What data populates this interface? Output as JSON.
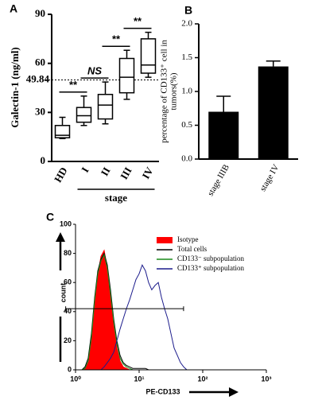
{
  "chart_data": [
    {
      "type": "box",
      "panel": "A",
      "ylabel": "Galectin-1 (ng/ml)",
      "categories": [
        "HD",
        "I",
        "II",
        "III",
        "IV"
      ],
      "boxes": [
        {
          "min": 14,
          "q1": 14.5,
          "median": 16,
          "q3": 22,
          "max": 27
        },
        {
          "min": 22,
          "q1": 24,
          "median": 28,
          "q3": 33,
          "max": 40
        },
        {
          "min": 23,
          "q1": 26,
          "median": 34.5,
          "q3": 41,
          "max": 48.6
        },
        {
          "min": 38,
          "q1": 42,
          "median": 51.5,
          "q3": 63,
          "max": 68
        },
        {
          "min": 51.5,
          "q1": 54,
          "median": 59,
          "q3": 75,
          "max": 79
        }
      ],
      "reference_line": 49.84,
      "significance": [
        "**",
        "NS",
        "**",
        "**"
      ],
      "group_label": "stage",
      "ylim": [
        0,
        90
      ],
      "yticks": [
        0,
        30,
        60,
        90
      ]
    },
    {
      "type": "bar",
      "panel": "B",
      "ylabel": [
        "percentage of CD133⁺ cell in",
        "tumors(%)"
      ],
      "categories": [
        "stage IIIB",
        "stage IV"
      ],
      "values": [
        0.7,
        1.37
      ],
      "errors": [
        0.23,
        0.08
      ],
      "color": "#000000",
      "ylim": [
        0,
        2
      ],
      "yticks": [
        {
          "value": 0,
          "label": "0.0"
        },
        0.5,
        {
          "value": 1,
          "label": "1.0"
        },
        1.5,
        {
          "value": 2,
          "label": "2.0"
        }
      ]
    },
    {
      "type": "histogram-line",
      "panel": "C",
      "xlabel": "PE-CD133",
      "ylabel": "count",
      "log_x": true,
      "legend": "top-right",
      "x": [
        1,
        1.12,
        1.26,
        1.41,
        1.58,
        1.78,
        2,
        2.24,
        2.51,
        2.82,
        3.16,
        3.55,
        3.98,
        4.47,
        5.01,
        5.62,
        6.31,
        7.08,
        7.94,
        8.91,
        10,
        11.2,
        12.6,
        14.1,
        15.8,
        17.8,
        20,
        22.4,
        25.1,
        28.2,
        31.6,
        35.5,
        39.8,
        44.7,
        50.1,
        56.2,
        63.1
      ],
      "series": [
        {
          "name": "Isotype",
          "color": "#ff0000",
          "fill": true,
          "values": [
            0,
            0,
            0,
            1,
            5,
            20,
            45,
            65,
            78,
            82,
            70,
            50,
            30,
            15,
            6,
            2,
            1,
            0,
            0,
            0,
            0,
            0,
            0,
            0,
            0,
            0,
            0,
            0,
            0,
            0,
            0,
            0,
            0,
            0,
            0,
            0,
            0
          ]
        },
        {
          "name": "Total cells",
          "color": "#000000",
          "fill": false,
          "values": [
            0,
            0,
            0,
            2,
            8,
            25,
            50,
            68,
            76,
            80,
            72,
            55,
            35,
            20,
            10,
            5,
            3,
            2,
            1,
            1,
            1,
            1,
            1,
            0,
            0,
            0,
            0,
            0,
            0,
            0,
            0,
            0,
            0,
            0,
            0,
            0,
            0
          ]
        },
        {
          "name": "CD133⁻ subpopulation",
          "color": "#1a8a1a",
          "fill": false,
          "values": [
            0,
            0,
            0,
            1,
            6,
            22,
            48,
            66,
            75,
            79,
            70,
            52,
            33,
            18,
            8,
            4,
            2,
            1,
            0,
            0,
            0,
            0,
            0,
            0,
            0,
            0,
            0,
            0,
            0,
            0,
            0,
            0,
            0,
            0,
            0,
            0,
            0
          ]
        },
        {
          "name": "CD133⁺ subpopulation",
          "color": "#1c1c8c",
          "fill": false,
          "values": [
            0,
            0,
            0,
            0,
            0,
            0,
            0,
            0,
            0,
            2,
            5,
            8,
            12,
            20,
            28,
            35,
            42,
            48,
            55,
            62,
            66,
            72,
            68,
            60,
            55,
            58,
            60,
            50,
            42,
            35,
            25,
            15,
            10,
            5,
            2,
            0,
            0
          ]
        }
      ],
      "gate": {
        "x": [
          0.7,
          50
        ],
        "y": 42
      },
      "xlim": [
        1,
        1000
      ],
      "xticks": [
        {
          "value": 1,
          "label": "10⁰"
        },
        {
          "value": 10,
          "label": "10¹"
        },
        {
          "value": 100,
          "label": "10²"
        },
        {
          "value": 1000,
          "label": "10³"
        }
      ],
      "ylim": [
        0,
        100
      ],
      "yticks": [
        0,
        20,
        40,
        60,
        80,
        100
      ]
    }
  ]
}
